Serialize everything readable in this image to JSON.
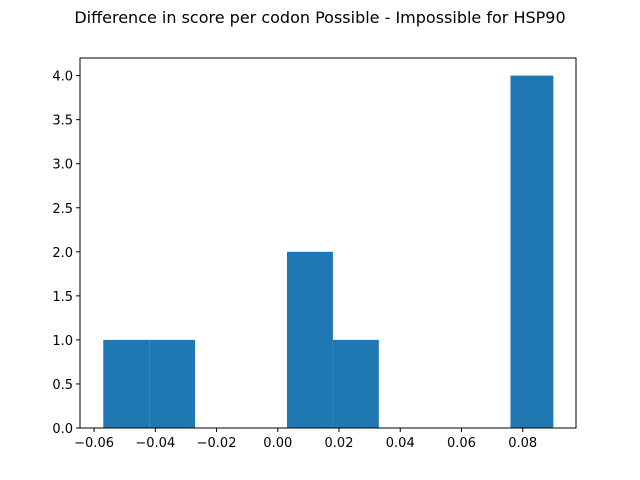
{
  "chart_data": {
    "type": "bar",
    "title": "Difference in score per codon Possible - Impossible for HSP90",
    "xlabel": "",
    "ylabel": "",
    "xlim": [
      -0.0646,
      0.0974
    ],
    "ylim": [
      0,
      4.2
    ],
    "x_ticks": [
      {
        "value": -0.06,
        "label": "−0.06"
      },
      {
        "value": -0.04,
        "label": "−0.04"
      },
      {
        "value": -0.02,
        "label": "−0.02"
      },
      {
        "value": 0.0,
        "label": "0.00"
      },
      {
        "value": 0.02,
        "label": "0.02"
      },
      {
        "value": 0.04,
        "label": "0.04"
      },
      {
        "value": 0.06,
        "label": "0.06"
      },
      {
        "value": 0.08,
        "label": "0.08"
      }
    ],
    "y_ticks": [
      {
        "value": 0.0,
        "label": "0.0"
      },
      {
        "value": 0.5,
        "label": "0.5"
      },
      {
        "value": 1.0,
        "label": "1.0"
      },
      {
        "value": 1.5,
        "label": "1.5"
      },
      {
        "value": 2.0,
        "label": "2.0"
      },
      {
        "value": 2.5,
        "label": "2.5"
      },
      {
        "value": 3.0,
        "label": "3.0"
      },
      {
        "value": 3.5,
        "label": "3.5"
      },
      {
        "value": 4.0,
        "label": "4.0"
      }
    ],
    "bins": [
      -0.057,
      -0.042,
      -0.027,
      -0.012,
      0.003,
      0.018,
      0.033,
      0.048,
      0.063,
      0.076,
      0.09
    ],
    "counts": [
      1,
      1,
      0,
      0,
      2,
      1,
      0,
      0,
      0,
      4
    ],
    "bar_color": "#1f77b4",
    "grid": false
  }
}
